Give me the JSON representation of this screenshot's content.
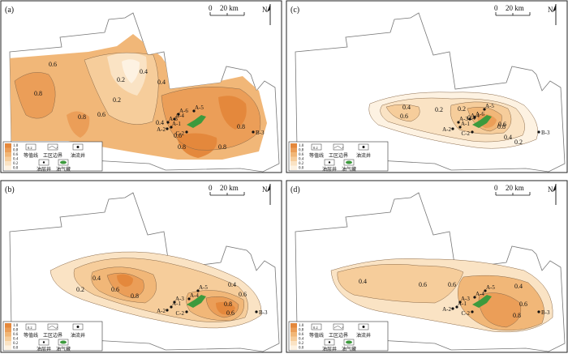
{
  "panels": [
    {
      "id": "a",
      "label": "(a)",
      "contours": [
        "0.6",
        "0.2",
        "0.4",
        "0.2",
        "0.4",
        "0.8",
        "0.4",
        "0.6",
        "0.8",
        "0.6",
        "0.8",
        "0.8",
        "0.8"
      ],
      "wells": [
        "A-6",
        "A-5",
        "A-4",
        "A-3",
        "A-1",
        "A-2",
        "C-2",
        "B-3"
      ]
    },
    {
      "id": "b",
      "label": "(b)",
      "contours": [
        "0.2",
        "0.4",
        "0.6",
        "0.8",
        "0.4",
        "0.6",
        "0.8",
        "0.6"
      ],
      "wells": [
        "A-5",
        "A-4",
        "A-3",
        "A-1",
        "A-2",
        "C-2",
        "B-3"
      ]
    },
    {
      "id": "c",
      "label": "(c)",
      "contours": [
        "0.4",
        "0.6",
        "0.2",
        "0.2",
        "0.4",
        "0.8",
        "0.6",
        "0.4",
        "0.2"
      ],
      "wells": [
        "A-6",
        "A-5",
        "A-4",
        "A-3",
        "A-1",
        "A-2",
        "C-2",
        "B-3"
      ]
    },
    {
      "id": "d",
      "label": "(d)",
      "contours": [
        "0.4",
        "0.6",
        "0.6",
        "0.4",
        "0.6",
        "0.8"
      ],
      "wells": [
        "A-5",
        "A-4",
        "A-3",
        "A-1",
        "A-2",
        "C-2",
        "B-3"
      ]
    }
  ],
  "scale_bar": {
    "start": "0",
    "end": "20 km"
  },
  "north": "N",
  "legend": {
    "ticks": [
      "1.0",
      "0.8",
      "0.6",
      "0.4",
      "0.2",
      "0.0"
    ],
    "contour_symbol_text": "0.2",
    "contour_label": "等值线",
    "boundary_label": "工区边界",
    "oil_well_label": "油流井",
    "oil_layer_well_label": "油层井",
    "reservoir_label": "油气藏",
    "colors": [
      "#e4883c",
      "#eb9e58",
      "#f1b778",
      "#f6cd9b",
      "#fae3c4",
      "#fdf2e2"
    ]
  }
}
